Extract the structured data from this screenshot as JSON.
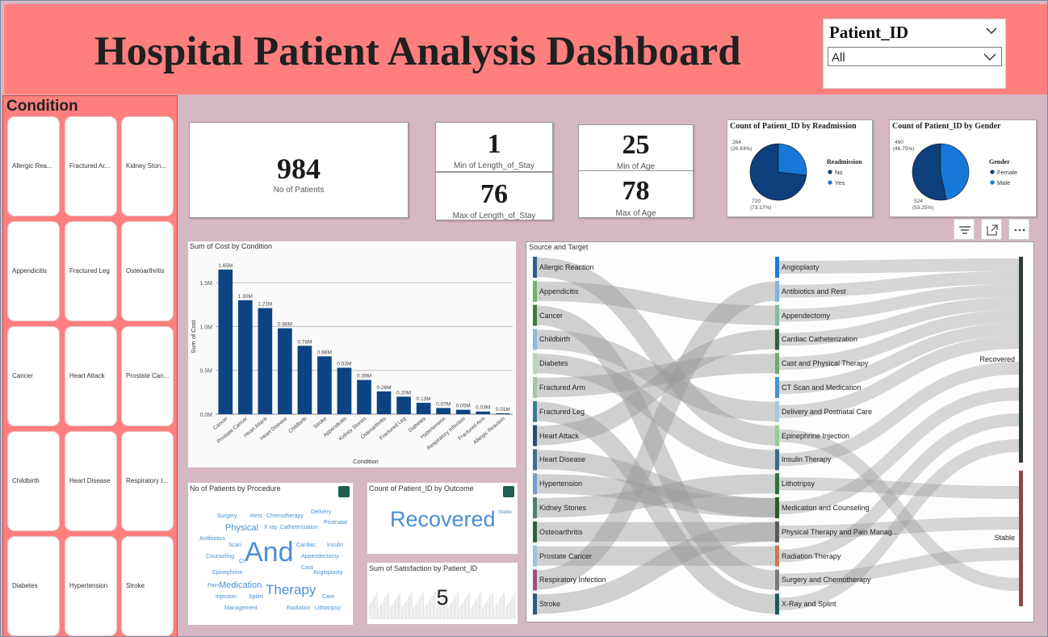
{
  "header": {
    "title": "Hospital Patient Analysis Dashboard"
  },
  "slicer": {
    "title": "Patient_ID",
    "value": "All"
  },
  "conditions": {
    "title": "Condition",
    "items": [
      "Allergic Rea...",
      "Fractured Ar...",
      "Kidney Ston...",
      "Appendicitis",
      "Fractured Leg",
      "Osteoarthritis",
      "Cancer",
      "Heart Attack",
      "Prostate Can...",
      "Childbirth",
      "Heart Disease",
      "Respiratory I...",
      "Diabetes",
      "Hypertension",
      "Stroke"
    ]
  },
  "kpis": {
    "patients": {
      "value": "984",
      "label": "No of Patients"
    },
    "min_los": {
      "value": "1",
      "label": "Min of Length_of_Stay"
    },
    "max_los": {
      "value": "76",
      "label": "Max of Length_of_Stay"
    },
    "min_age": {
      "value": "25",
      "label": "Min of Age"
    },
    "max_age": {
      "value": "78",
      "label": "Max of Age"
    }
  },
  "pie_readmission": {
    "title": "Count of Patient_ID by Readmission",
    "legend_title": "Readmission",
    "entries": [
      {
        "name": "No",
        "count": 720,
        "pct": "(73.17%)",
        "label_top": "720",
        "label_bottom": "(73.17%)",
        "color": "#0d3f7d"
      },
      {
        "name": "Yes",
        "count": 264,
        "pct": "(26.83%)",
        "label_top": "264",
        "label_bottom": "(26.83%)",
        "color": "#1679d9"
      }
    ]
  },
  "pie_gender": {
    "title": "Count of Patient_ID by Gender",
    "legend_title": "Gender",
    "entries": [
      {
        "name": "Female",
        "count": 524,
        "pct": "(53.25%)",
        "label_top": "524",
        "label_bottom": "(53.25%)",
        "color": "#0d3f7d"
      },
      {
        "name": "Male",
        "count": 460,
        "pct": "(46.75%)",
        "label_top": "460",
        "label_bottom": "(46.75%)",
        "color": "#1679d9"
      }
    ]
  },
  "chart_data": {
    "type": "bar",
    "title": "Sum of Cost by Condition",
    "xlabel": "Condition",
    "ylabel": "Sum of Cost",
    "categories": [
      "Cancer",
      "Prostate Cancer",
      "Heart Attack",
      "Heart Disease",
      "Childbirth",
      "Stroke",
      "Appendicitis",
      "Kidney Stones",
      "Osteoarthritis",
      "Fractured Leg",
      "Diabetes",
      "Hypertension",
      "Respiratory Infection",
      "Fractured Arm",
      "Allergic Reaction"
    ],
    "values": [
      1.65,
      1.3,
      1.21,
      0.98,
      0.78,
      0.66,
      0.53,
      0.39,
      0.26,
      0.2,
      0.13,
      0.07,
      0.05,
      0.03,
      0.01
    ],
    "value_labels": [
      "1.65M",
      "1.30M",
      "1.21M",
      "0.98M",
      "0.78M",
      "0.66M",
      "0.53M",
      "0.39M",
      "0.26M",
      "0.20M",
      "0.13M",
      "0.07M",
      "0.05M",
      "0.03M",
      "0.01M"
    ],
    "yticks": [
      "0.0M",
      "0.5M",
      "1.0M",
      "1.5M"
    ],
    "ylim": [
      0,
      1.75
    ],
    "units": "M",
    "color": "#0d4383",
    "grid": true
  },
  "wordcloud": {
    "title": "No of Patients by Procedure",
    "words": [
      "Surgery",
      "Rest",
      "Chemotherapy",
      "Delivery",
      "Physical",
      "X ray",
      "Catheterization",
      "Postnatal",
      "Antibiotics",
      "Scan",
      "And",
      "Cardiac",
      "Insulin",
      "Counseling",
      "Ct",
      "Appendectomy",
      "Cast",
      "Epinephrine",
      "Angioplasty",
      "Pain",
      "Medication",
      "Therapy",
      "Injection",
      "Splint",
      "Care",
      "Management",
      "Radiation",
      "Lithotripsy"
    ]
  },
  "outcome": {
    "title": "Count of Patient_ID by Outcome",
    "main": "Recovered",
    "secondary": "Stable"
  },
  "satisfaction": {
    "title": "Sum of Satisfaction by Patient_ID",
    "value": "5"
  },
  "sankey": {
    "title": "Source and Target",
    "sources": [
      "Allergic Reaction",
      "Appendicitis",
      "Cancer",
      "Childbirth",
      "Diabetes",
      "Fractured Arm",
      "Fractured Leg",
      "Heart Attack",
      "Heart Disease",
      "Hypertension",
      "Kidney Stones",
      "Osteoarthritis",
      "Prostate Cancer",
      "Respiratory Infection",
      "Stroke"
    ],
    "source_colors": [
      "#2e5e88",
      "#6fb36f",
      "#3f7a3f",
      "#8fb8e0",
      "#b8d8b8",
      "#a6c6a6",
      "#3a7a9a",
      "#2c4a6a",
      "#3f6f8f",
      "#6f9fcf",
      "#4f7f6f",
      "#2f5f3f",
      "#9fc0d8",
      "#a0507a",
      "#2a5a7a"
    ],
    "procedures": [
      "Angioplasty",
      "Antibiotics and Rest",
      "Appendectomy",
      "Cardiac Catheterization",
      "Cast and Physical Therapy",
      "CT Scan and Medication",
      "Delivery and Postnatal Care",
      "Epinephrine Injection",
      "Insulin Therapy",
      "Lithotripsy",
      "Medication and Counseling",
      "Physical Therapy and Pain Manag...",
      "Radiation Therapy",
      "Surgery and Chemotherapy",
      "X-Ray and Splint"
    ],
    "procedure_colors": [
      "#1a7ad9",
      "#7fb5e6",
      "#7fbf9f",
      "#2f5f3f",
      "#6fa86f",
      "#4a90d0",
      "#a6c6e6",
      "#8fd08f",
      "#3a6a8a",
      "#2f6f3f",
      "#2a5a2a",
      "#5a5a5a",
      "#c87850",
      "#7a7a7a",
      "#1a5a5a"
    ],
    "outcomes": [
      "Recovered",
      "Stable"
    ],
    "outcome_colors": [
      "#333a3a",
      "#8a4a4a"
    ]
  }
}
